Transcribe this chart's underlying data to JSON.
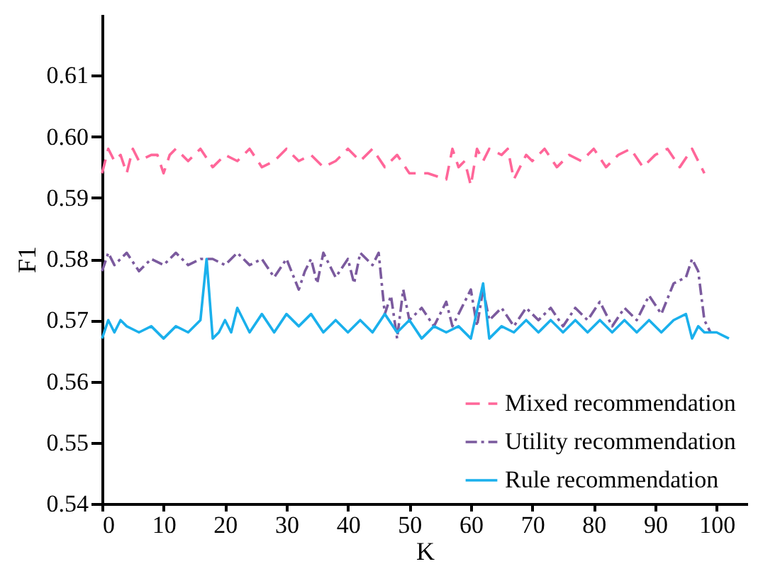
{
  "chart_data": {
    "type": "line",
    "xlabel": "K",
    "ylabel": "F1",
    "xlim": [
      0,
      105
    ],
    "xticks": [
      0,
      10,
      20,
      30,
      40,
      50,
      60,
      70,
      80,
      90,
      100
    ],
    "ylim": [
      0.54,
      0.62
    ],
    "yticks": [
      0.54,
      0.55,
      0.56,
      0.57,
      0.58,
      0.59,
      {
        "value": 0.6,
        "label": "0.60"
      },
      0.61
    ],
    "grid": false,
    "legend": "bottom right",
    "marker": "none",
    "series": [
      {
        "name": "Mixed recommendation",
        "color": "#ff6699",
        "line_style": "dashed",
        "x": [
          0,
          1,
          2,
          3,
          4,
          5,
          6,
          8,
          9,
          10,
          11,
          12,
          14,
          15,
          16,
          18,
          20,
          22,
          24,
          26,
          28,
          30,
          32,
          34,
          36,
          38,
          40,
          42,
          44,
          46,
          48,
          50,
          53,
          56,
          57,
          58,
          59,
          60,
          61,
          62,
          63,
          65,
          66,
          67,
          69,
          70,
          72,
          74,
          76,
          78,
          80,
          82,
          84,
          86,
          88,
          90,
          92,
          94,
          96,
          98
        ],
        "values": [
          0.594,
          0.598,
          0.596,
          0.597,
          0.594,
          0.598,
          0.596,
          0.597,
          0.597,
          0.594,
          0.597,
          0.598,
          0.596,
          0.597,
          0.598,
          0.595,
          0.597,
          0.596,
          0.598,
          0.595,
          0.596,
          0.598,
          0.596,
          0.597,
          0.595,
          0.596,
          0.598,
          0.596,
          0.598,
          0.595,
          0.597,
          0.594,
          0.594,
          0.593,
          0.598,
          0.595,
          0.596,
          0.592,
          0.598,
          0.596,
          0.598,
          0.597,
          0.598,
          0.593,
          0.597,
          0.596,
          0.598,
          0.595,
          0.597,
          0.596,
          0.598,
          0.595,
          0.597,
          0.598,
          0.595,
          0.597,
          0.598,
          0.595,
          0.598,
          0.594
        ]
      },
      {
        "name": "Utility recommendation",
        "color": "#7b5a9e",
        "line_style": "dotted",
        "x": [
          0,
          1,
          2,
          4,
          6,
          8,
          10,
          12,
          14,
          16,
          18,
          20,
          22,
          24,
          26,
          28,
          30,
          32,
          33,
          34,
          35,
          36,
          38,
          40,
          41,
          42,
          44,
          45,
          46,
          47,
          48,
          49,
          50,
          52,
          54,
          56,
          57,
          58,
          60,
          61,
          62,
          63,
          65,
          67,
          69,
          71,
          73,
          75,
          77,
          79,
          81,
          83,
          85,
          87,
          89,
          91,
          93,
          95,
          96,
          97,
          98,
          99
        ],
        "values": [
          0.578,
          0.581,
          0.579,
          0.581,
          0.578,
          0.58,
          0.579,
          0.581,
          0.579,
          0.58,
          0.58,
          0.579,
          0.581,
          0.579,
          0.58,
          0.577,
          0.58,
          0.575,
          0.578,
          0.58,
          0.576,
          0.581,
          0.577,
          0.58,
          0.576,
          0.581,
          0.579,
          0.581,
          0.571,
          0.574,
          0.567,
          0.575,
          0.57,
          0.572,
          0.569,
          0.573,
          0.569,
          0.571,
          0.575,
          0.569,
          0.575,
          0.57,
          0.572,
          0.569,
          0.572,
          0.57,
          0.572,
          0.569,
          0.572,
          0.57,
          0.573,
          0.569,
          0.572,
          0.57,
          0.574,
          0.571,
          0.576,
          0.577,
          0.58,
          0.578,
          0.57,
          0.568
        ]
      },
      {
        "name": " Rule recommendation",
        "color": "#1ab0ec",
        "line_style": "solid",
        "x": [
          0,
          1,
          2,
          3,
          4,
          6,
          8,
          10,
          12,
          14,
          16,
          17,
          18,
          19,
          20,
          21,
          22,
          24,
          26,
          28,
          30,
          32,
          34,
          36,
          38,
          40,
          42,
          44,
          46,
          48,
          50,
          52,
          54,
          56,
          58,
          60,
          62,
          63,
          65,
          67,
          69,
          71,
          73,
          75,
          77,
          79,
          81,
          83,
          85,
          87,
          89,
          91,
          93,
          95,
          96,
          97,
          98,
          100,
          102
        ],
        "values": [
          0.567,
          0.57,
          0.568,
          0.57,
          0.569,
          0.568,
          0.569,
          0.567,
          0.569,
          0.568,
          0.57,
          0.58,
          0.567,
          0.568,
          0.57,
          0.568,
          0.572,
          0.568,
          0.571,
          0.568,
          0.571,
          0.569,
          0.571,
          0.568,
          0.57,
          0.568,
          0.57,
          0.568,
          0.571,
          0.568,
          0.57,
          0.567,
          0.569,
          0.568,
          0.569,
          0.567,
          0.576,
          0.567,
          0.569,
          0.568,
          0.57,
          0.568,
          0.57,
          0.568,
          0.57,
          0.568,
          0.57,
          0.568,
          0.57,
          0.568,
          0.57,
          0.568,
          0.57,
          0.571,
          0.567,
          0.569,
          0.568,
          0.568,
          0.567
        ]
      }
    ]
  }
}
